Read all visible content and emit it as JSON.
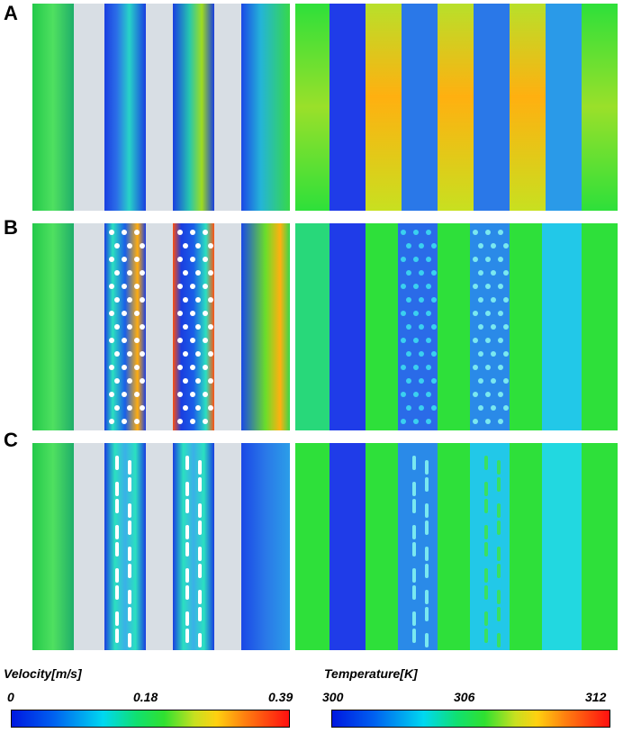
{
  "panels": [
    {
      "letter": "A",
      "pattern": "plain"
    },
    {
      "letter": "B",
      "pattern": "dots"
    },
    {
      "letter": "C",
      "pattern": "slots"
    }
  ],
  "colorbars": {
    "velocity": {
      "title": "Velocity[m/s]",
      "ticks": [
        "0",
        "0.18",
        "0.39"
      ]
    },
    "temperature": {
      "title": "Temperature[K]",
      "ticks": [
        "300",
        "306",
        "312"
      ]
    }
  },
  "colors": {
    "fluid_green": "#2ee03a",
    "fluid_blue": "#1f4fe6",
    "cyan": "#22c8e8",
    "yellow": "#d8e020",
    "orange": "#ff9a10",
    "solid_gray": "#d8dee4"
  }
}
